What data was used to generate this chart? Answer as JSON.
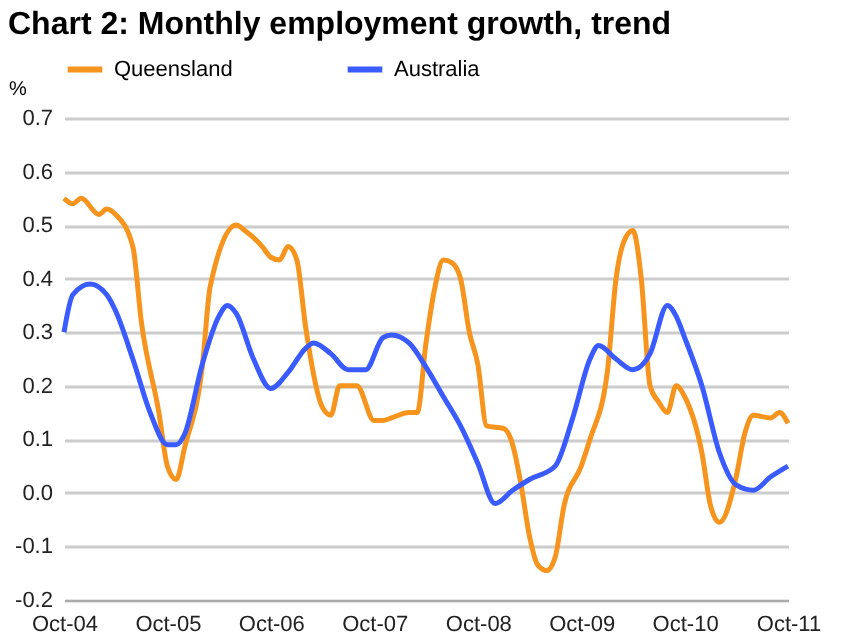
{
  "chart_data": {
    "type": "line",
    "title": "Chart 2: Monthly employment growth, trend",
    "ylabel": "%",
    "series": [
      {
        "name": "Queensland",
        "color": "#f7941d",
        "x": [
          "2004-10",
          "2004-11",
          "2004-12",
          "2005-02",
          "2005-03",
          "2005-04",
          "2005-06",
          "2005-07",
          "2005-09",
          "2005-10",
          "2005-11",
          "2005-12",
          "2006-02",
          "2006-03",
          "2006-06",
          "2006-07",
          "2006-09",
          "2006-10",
          "2006-11",
          "2006-12",
          "2007-01",
          "2007-02",
          "2007-04",
          "2007-05",
          "2007-06",
          "2007-08",
          "2007-10",
          "2007-11",
          "2007-12",
          "2008-02",
          "2008-03",
          "2008-04",
          "2008-05",
          "2008-06",
          "2008-07",
          "2008-08",
          "2008-09",
          "2008-10",
          "2008-11",
          "2009-01",
          "2009-02",
          "2009-03",
          "2009-04",
          "2009-05",
          "2009-06",
          "2009-07",
          "2009-08",
          "2009-10",
          "2009-11",
          "2010-01",
          "2010-02",
          "2010-03",
          "2010-04",
          "2010-05",
          "2010-06",
          "2010-07",
          "2010-08",
          "2010-09",
          "2010-10",
          "2010-12",
          "2011-01",
          "2011-02",
          "2011-04",
          "2011-05",
          "2011-06",
          "2011-08",
          "2011-09",
          "2011-10"
        ],
        "values": [
          0.55,
          0.54,
          0.55,
          0.52,
          0.53,
          0.52,
          0.46,
          0.32,
          0.15,
          0.05,
          0.025,
          0.085,
          0.235,
          0.385,
          0.5,
          0.49,
          0.46,
          0.44,
          0.435,
          0.46,
          0.435,
          0.31,
          0.16,
          0.145,
          0.2,
          0.2,
          0.135,
          0.135,
          0.14,
          0.15,
          0.15,
          0.28,
          0.38,
          0.435,
          0.43,
          0.4,
          0.3,
          0.24,
          0.125,
          0.12,
          0.09,
          0.02,
          -0.08,
          -0.135,
          -0.145,
          -0.12,
          -0.025,
          0.05,
          0.1,
          0.225,
          0.4,
          0.47,
          0.49,
          0.4,
          0.2,
          0.17,
          0.15,
          0.2,
          0.18,
          0.075,
          -0.025,
          -0.055,
          0.03,
          0.11,
          0.145,
          0.14,
          0.15,
          0.13
        ]
      },
      {
        "name": "Australia",
        "color": "#3a5bff",
        "x": [
          "2004-10",
          "2004-11",
          "2005-01",
          "2005-03",
          "2005-04",
          "2005-06",
          "2005-08",
          "2005-10",
          "2005-11",
          "2005-12",
          "2006-02",
          "2006-04",
          "2006-05",
          "2006-06",
          "2006-08",
          "2006-10",
          "2006-12",
          "2007-02",
          "2007-03",
          "2007-05",
          "2007-07",
          "2007-09",
          "2007-11",
          "2007-12",
          "2008-02",
          "2008-04",
          "2008-06",
          "2008-08",
          "2008-10",
          "2008-12",
          "2009-02",
          "2009-04",
          "2009-07",
          "2009-09",
          "2009-11",
          "2009-12",
          "2010-02",
          "2010-04",
          "2010-06",
          "2010-08",
          "2010-09",
          "2010-10",
          "2010-12",
          "2011-02",
          "2011-04",
          "2011-06",
          "2011-08",
          "2011-10"
        ],
        "values": [
          0.3,
          0.37,
          0.39,
          0.37,
          0.34,
          0.25,
          0.15,
          0.09,
          0.09,
          0.11,
          0.24,
          0.33,
          0.35,
          0.335,
          0.25,
          0.195,
          0.225,
          0.27,
          0.28,
          0.26,
          0.23,
          0.23,
          0.29,
          0.295,
          0.28,
          0.235,
          0.18,
          0.125,
          0.055,
          -0.02,
          0.005,
          0.025,
          0.05,
          0.14,
          0.25,
          0.275,
          0.25,
          0.23,
          0.26,
          0.35,
          0.33,
          0.29,
          0.2,
          0.075,
          0.015,
          0.005,
          0.03,
          0.05
        ]
      }
    ],
    "xlim": [
      "2004-10",
      "2011-10"
    ],
    "xticks": [
      {
        "value": "2004-10",
        "label": "Oct-04"
      },
      {
        "value": "2005-10",
        "label": "Oct-05"
      },
      {
        "value": "2006-10",
        "label": "Oct-06"
      },
      {
        "value": "2007-10",
        "label": "Oct-07"
      },
      {
        "value": "2008-10",
        "label": "Oct-08"
      },
      {
        "value": "2009-10",
        "label": "Oct-09"
      },
      {
        "value": "2010-10",
        "label": "Oct-10"
      },
      {
        "value": "2011-10",
        "label": "Oct-11"
      }
    ],
    "ylim": [
      -0.2,
      0.7
    ],
    "yticks": [
      -0.2,
      -0.1,
      {
        "value": 0,
        "label": "0.0"
      },
      0.1,
      0.2,
      0.3,
      0.4,
      0.5,
      0.6,
      0.7
    ],
    "grid": "y",
    "legend": "top",
    "marker": "none",
    "line_style": "solid"
  }
}
